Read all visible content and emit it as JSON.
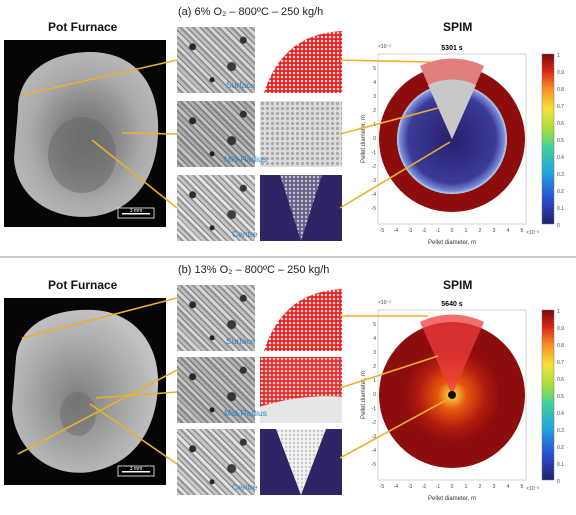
{
  "panels": [
    {
      "id": "a",
      "title": "(a) 6% O₂ – 800ºC – 250 kg/h",
      "left_heading": "Pot Furnace",
      "right_heading": "SPIM",
      "scale_bar": "3 mm",
      "labels": {
        "surface": "Surface",
        "mid_radius": "Mid-Radius",
        "centre": "Centre"
      },
      "time_label": "5301 s",
      "y_axis_label": "Pellet diameter, m",
      "x_axis_label": "Pellet diameter, m",
      "axis_exponent": "×10⁻³",
      "core_color": "#2e2a7e",
      "shell_color": "#8d0d0d"
    },
    {
      "id": "b",
      "title": "(b) 13% O₂ – 800ºC – 250 kg/h",
      "left_heading": "Pot Furnace",
      "right_heading": "SPIM",
      "scale_bar": "3 mm",
      "labels": {
        "surface": "Surface",
        "mid_radius": "Mid-Radius",
        "centre": "Centre"
      },
      "time_label": "5640 s",
      "y_axis_label": "Pellet diameter, m",
      "x_axis_label": "Pellet diameter, m",
      "axis_exponent": "×10⁻³",
      "core_color": "#e24a0c",
      "shell_color": "#8d0d0d"
    }
  ],
  "x_ticks": [
    "-5",
    "-4",
    "-3",
    "-2",
    "-1",
    "0",
    "1",
    "2",
    "3",
    "4",
    "5"
  ],
  "y_ticks": [
    "5",
    "4",
    "3",
    "2",
    "1",
    "0",
    "-1",
    "-2",
    "-3",
    "-4",
    "-5"
  ],
  "colorbar_ticks": [
    "1",
    "0.9",
    "0.8",
    "0.7",
    "0.6",
    "0.5",
    "0.4",
    "0.3",
    "0.2",
    "0.1",
    "0"
  ],
  "colors": {
    "label_blue": "#2a84c8",
    "connector": "#e9b12c",
    "wedge_red": "#f03c3c"
  }
}
